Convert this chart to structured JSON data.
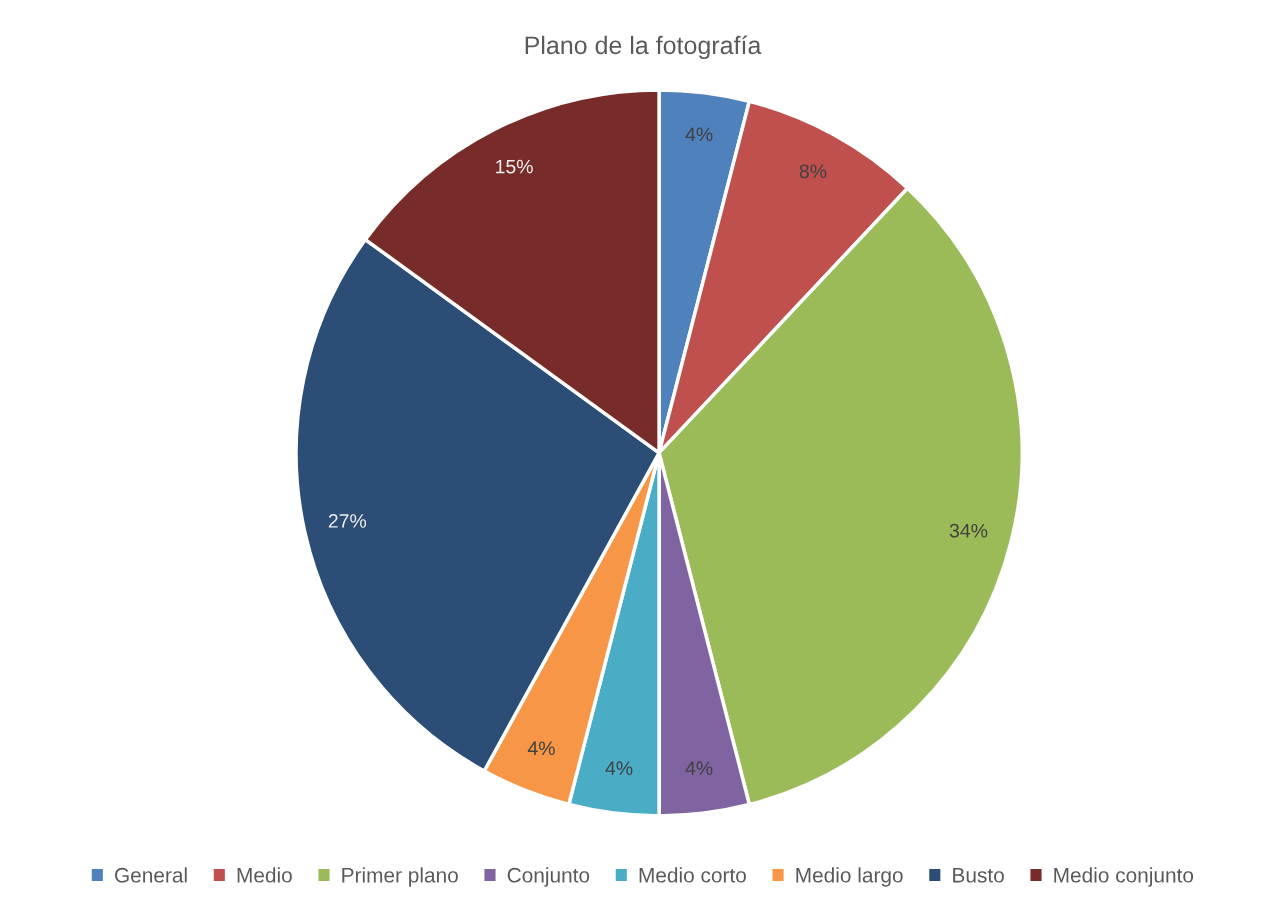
{
  "chart_data": {
    "type": "pie",
    "title": "Plano de la fotografía",
    "categories": [
      "General",
      "Medio",
      "Primer plano",
      "Conjunto",
      "Medio corto",
      "Medio largo",
      "Busto",
      "Medio conjunto"
    ],
    "values": [
      4,
      8,
      34,
      4,
      4,
      4,
      27,
      15
    ],
    "value_labels": [
      "4%",
      "8%",
      "34%",
      "4%",
      "4%",
      "4%",
      "27%",
      "15%"
    ],
    "colors": [
      "#4f81bd",
      "#c0504d",
      "#9bbb59",
      "#8064a2",
      "#4bacc6",
      "#f79646",
      "#2c4d75",
      "#772c2a"
    ],
    "legend": "bottom"
  }
}
